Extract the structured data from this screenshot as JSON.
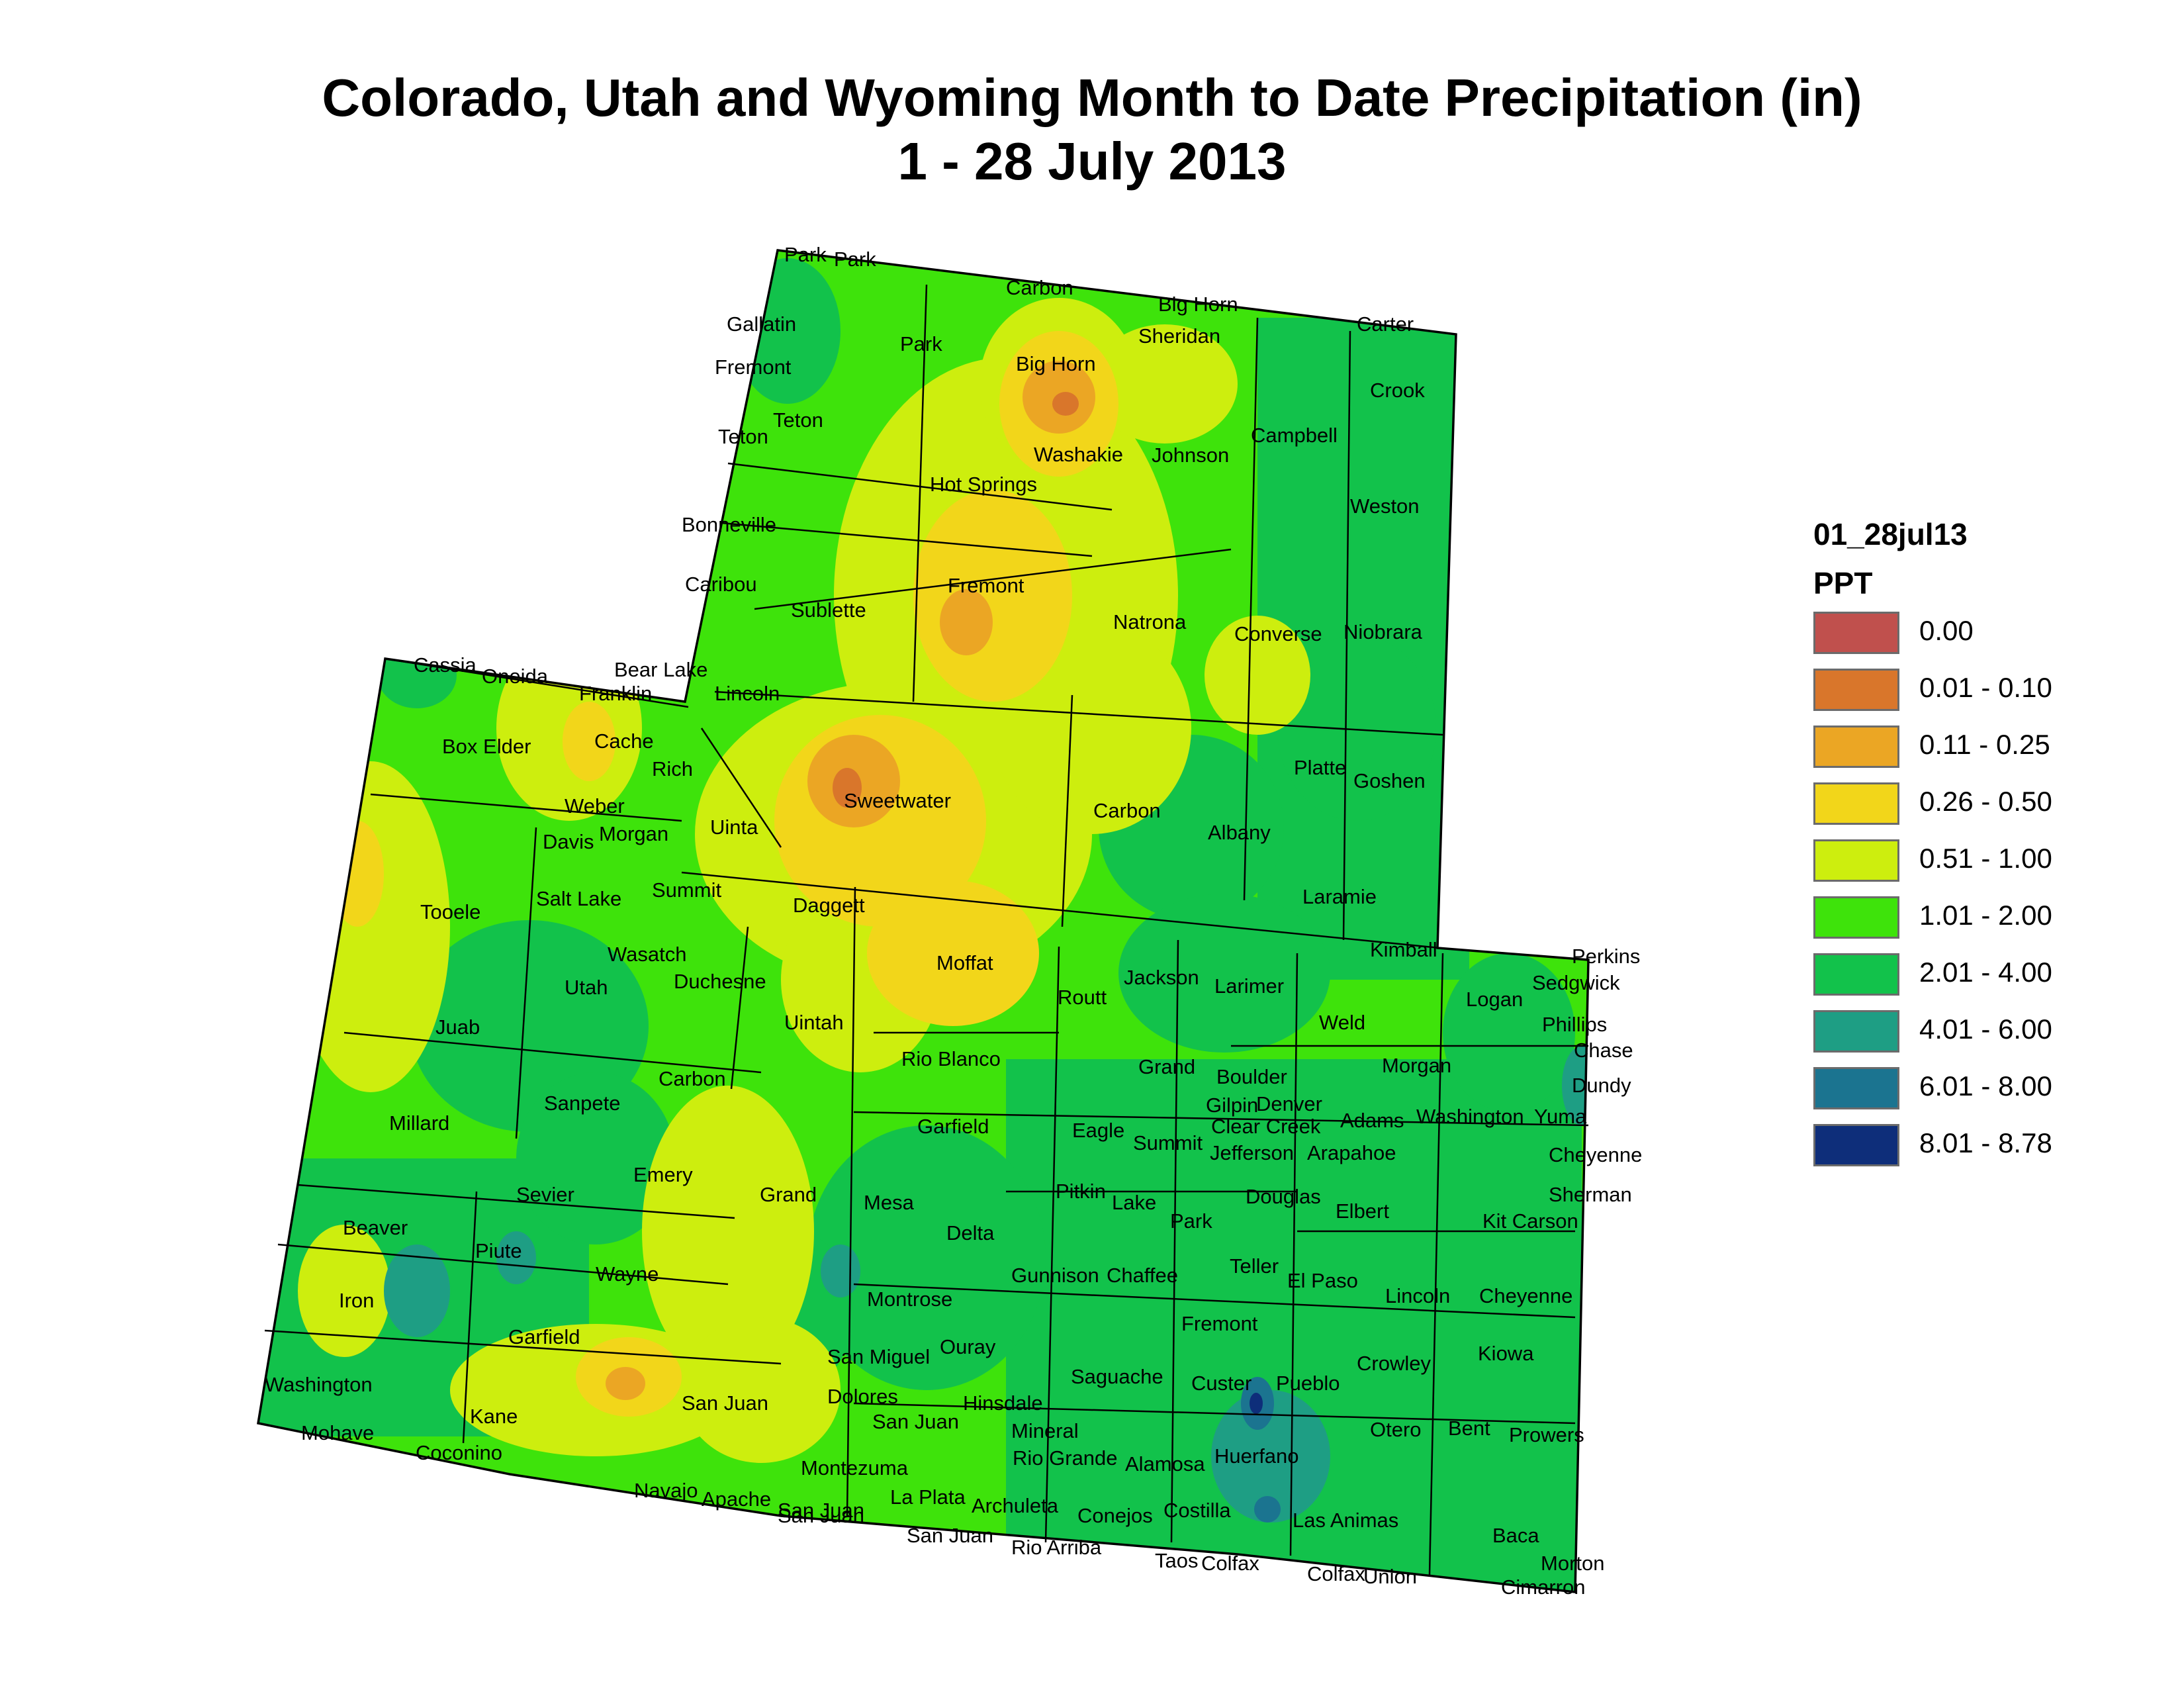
{
  "title": {
    "line1": "Colorado, Utah and Wyoming Month to Date Precipitation (in)",
    "line2": "1 - 28 July 2013"
  },
  "legend": {
    "heading": "01_28jul13",
    "field": "PPT",
    "classes": [
      {
        "label": "0.00",
        "color": "#c0504d"
      },
      {
        "label": "0.01 - 0.10",
        "color": "#d9762b"
      },
      {
        "label": "0.11 - 0.25",
        "color": "#eba624"
      },
      {
        "label": "0.26 - 0.50",
        "color": "#f2d61a"
      },
      {
        "label": "0.51 - 1.00",
        "color": "#cdee0e"
      },
      {
        "label": "1.01 - 2.00",
        "color": "#3ee30b"
      },
      {
        "label": "2.01 - 4.00",
        "color": "#12c24b"
      },
      {
        "label": "4.01 - 6.00",
        "color": "#1e9e84"
      },
      {
        "label": "6.01 - 8.00",
        "color": "#1b7490"
      },
      {
        "label": "8.01 - 8.78",
        "color": "#0e2e7a"
      }
    ]
  },
  "counties": {
    "wyoming": [
      "Park",
      "Park",
      "Carbon",
      "Big Horn",
      "Gallatin",
      "Sheridan",
      "Carter",
      "Fremont",
      "Park",
      "Big Horn",
      "Crook",
      "Teton",
      "Teton",
      "Washakie",
      "Johnson",
      "Campbell",
      "Hot Springs",
      "Weston",
      "Bonneville",
      "Caribou",
      "Fremont",
      "Sublette",
      "Natrona",
      "Converse",
      "Niobrara",
      "Lincoln",
      "Sweetwater",
      "Carbon",
      "Platte",
      "Goshen",
      "Albany",
      "Uinta",
      "Laramie"
    ],
    "utah": [
      "Cassia",
      "Oneida",
      "Bear Lake",
      "Franklin",
      "Box Elder",
      "Cache",
      "Rich",
      "Weber",
      "Davis",
      "Morgan",
      "Salt Lake",
      "Summit",
      "Tooele",
      "Daggett",
      "Wasatch",
      "Duchesne",
      "Utah",
      "Uintah",
      "Juab",
      "Carbon",
      "Sanpete",
      "Millard",
      "Emery",
      "Sevier",
      "Grand",
      "Beaver",
      "Piute",
      "Wayne",
      "Iron",
      "Garfield",
      "Washington",
      "Kane",
      "San Juan",
      "Mohave",
      "Coconino",
      "Navajo",
      "Apache",
      "San Juan"
    ],
    "colorado": [
      "Kimball",
      "Perkins",
      "Sedgwick",
      "Moffat",
      "Jackson",
      "Larimer",
      "Routt",
      "Logan",
      "Phillips",
      "Chase",
      "Weld",
      "Rio Blanco",
      "Grand",
      "Morgan",
      "Dundy",
      "Boulder",
      "Gilpin",
      "Denver",
      "Washington",
      "Yuma",
      "Garfield",
      "Eagle",
      "Clear Creek",
      "Summit",
      "Adams",
      "Jefferson",
      "Arapahoe",
      "Cheyenne",
      "Mesa",
      "Pitkin",
      "Lake",
      "Douglas",
      "Elbert",
      "Sherman",
      "Delta",
      "Park",
      "Kit Carson",
      "Gunnison",
      "Chaffee",
      "Teller",
      "El Paso",
      "Montrose",
      "Lincoln",
      "Cheyenne",
      "Ouray",
      "Fremont",
      "San Miguel",
      "Crowley",
      "Kiowa",
      "Saguache",
      "Custer",
      "Pueblo",
      "Dolores",
      "Hinsdale",
      "San Juan",
      "Mineral",
      "Otero",
      "Bent",
      "Prowers",
      "Rio Grande",
      "Alamosa",
      "Huerfano",
      "Montezuma",
      "La Plata",
      "Archuleta",
      "Conejos",
      "Costilla",
      "Las Animas",
      "Baca",
      "San Juan",
      "San Juan",
      "Rio Arriba",
      "Taos",
      "Colfax",
      "Colfax",
      "Union",
      "Morton",
      "Cimarron"
    ]
  }
}
